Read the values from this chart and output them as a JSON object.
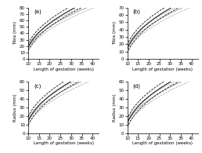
{
  "panels": [
    {
      "label": "(a)",
      "ylabel": "Tibia (mm)",
      "ylim": [
        0,
        80
      ],
      "xmin": 10,
      "func_params": [
        17.0,
        8.5,
        -2.0
      ],
      "offsets_black": [
        -5.5,
        0,
        5.5
      ],
      "offsets_grey": [
        -4.5,
        0,
        4.5
      ],
      "grey_scale": 0.88,
      "grey_shift": 1.5
    },
    {
      "label": "(b)",
      "ylabel": "Tibia (mm)",
      "ylim": [
        0,
        70
      ],
      "xmin": 10,
      "func_params": [
        15.5,
        9.0,
        -2.0
      ],
      "offsets_black": [
        -5.5,
        0,
        5.5
      ],
      "offsets_grey": [
        -4.5,
        0,
        4.5
      ],
      "grey_scale": 0.88,
      "grey_shift": 1.5
    },
    {
      "label": "(c)",
      "ylabel": "Radius (mm)",
      "ylim": [
        0,
        60
      ],
      "xmin": 10,
      "func_params": [
        13.5,
        8.5,
        -2.0
      ],
      "offsets_black": [
        -5.0,
        0,
        5.0
      ],
      "offsets_grey": [
        -4.0,
        0,
        4.0
      ],
      "grey_scale": 0.88,
      "grey_shift": 1.5
    },
    {
      "label": "(d)",
      "ylabel": "Radius (mm)",
      "ylim": [
        0,
        60
      ],
      "xmin": 10,
      "func_params": [
        13.5,
        9.0,
        -2.0
      ],
      "offsets_black": [
        -5.0,
        0,
        5.0
      ],
      "offsets_grey": [
        -4.0,
        0,
        4.0
      ],
      "grey_scale": 0.88,
      "grey_shift": 1.5
    }
  ],
  "xlabel": "Length of gestation (weeks)",
  "xticks": [
    10,
    15,
    20,
    25,
    30,
    35,
    40
  ],
  "black_styles": [
    {
      "ls": "--",
      "lw": 0.55,
      "color": "#000000"
    },
    {
      "ls": "-",
      "lw": 0.7,
      "color": "#000000"
    },
    {
      "ls": "--",
      "lw": 0.55,
      "color": "#000000"
    }
  ],
  "grey_styles": [
    {
      "ls": "--",
      "lw": 0.5,
      "color": "#999999"
    },
    {
      "ls": "-",
      "lw": 0.6,
      "color": "#999999"
    },
    {
      "ls": "--",
      "lw": 0.5,
      "color": "#999999"
    }
  ],
  "bg_color": "#ffffff"
}
